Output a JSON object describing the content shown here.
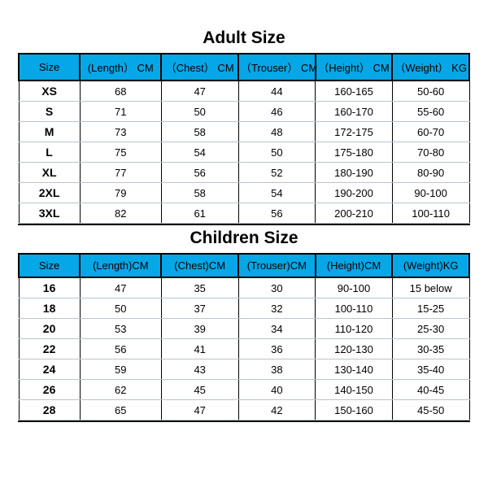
{
  "colors": {
    "header_bg": "#06a7e6",
    "header_border": "#000000",
    "cell_border": "#b9c5cb",
    "background": "#ffffff",
    "text": "#000000"
  },
  "typography": {
    "title_fontsize": 21,
    "header_fontsize": 13,
    "cell_fontsize": 13,
    "font_family": "Arial"
  },
  "adult": {
    "title": "Adult Size",
    "columns": [
      "Size",
      "(Length） CM",
      "（Chest） CM",
      "（Trouser） CM",
      "（Height） CM",
      "（Weight） KG"
    ],
    "rows": [
      [
        "XS",
        "68",
        "47",
        "44",
        "160-165",
        "50-60"
      ],
      [
        "S",
        "71",
        "50",
        "46",
        "160-170",
        "55-60"
      ],
      [
        "M",
        "73",
        "58",
        "48",
        "172-175",
        "60-70"
      ],
      [
        "L",
        "75",
        "54",
        "50",
        "175-180",
        "70-80"
      ],
      [
        "XL",
        "77",
        "56",
        "52",
        "180-190",
        "80-90"
      ],
      [
        "2XL",
        "79",
        "58",
        "54",
        "190-200",
        "90-100"
      ],
      [
        "3XL",
        "82",
        "61",
        "56",
        "200-210",
        "100-110"
      ]
    ]
  },
  "children": {
    "title": "Children Size",
    "columns": [
      "Size",
      "(Length)CM",
      "(Chest)CM",
      "(Trouser)CM",
      "(Height)CM",
      "(Weight)KG"
    ],
    "rows": [
      [
        "16",
        "47",
        "35",
        "30",
        "90-100",
        "15 below"
      ],
      [
        "18",
        "50",
        "37",
        "32",
        "100-110",
        "15-25"
      ],
      [
        "20",
        "53",
        "39",
        "34",
        "110-120",
        "25-30"
      ],
      [
        "22",
        "56",
        "41",
        "36",
        "120-130",
        "30-35"
      ],
      [
        "24",
        "59",
        "43",
        "38",
        "130-140",
        "35-40"
      ],
      [
        "26",
        "62",
        "45",
        "40",
        "140-150",
        "40-45"
      ],
      [
        "28",
        "65",
        "47",
        "42",
        "150-160",
        "45-50"
      ]
    ]
  }
}
